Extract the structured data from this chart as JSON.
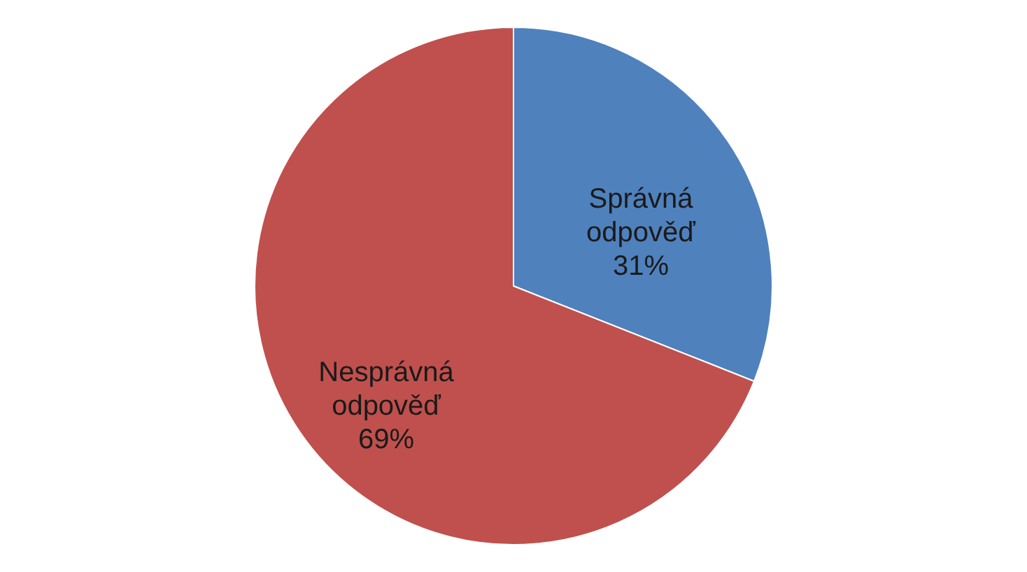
{
  "chart_data": {
    "type": "pie",
    "categories": [
      "Správná odpověď",
      "Nesprávná odpověď"
    ],
    "values": [
      31,
      69
    ],
    "colors": [
      "#4f81bd",
      "#c0504d"
    ],
    "value_labels": [
      "31%",
      "69%"
    ],
    "legend": false
  }
}
